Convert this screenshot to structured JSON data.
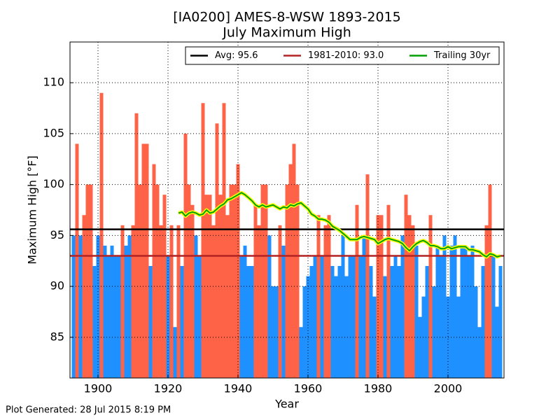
{
  "chart_data": {
    "type": "bar",
    "title": "[IA0200] AMES-8-WSW 1893-2015",
    "subtitle": "July Maximum High",
    "xlabel": "Year",
    "ylabel": "Maximum High [°F]",
    "footer": "Plot Generated: 28 Jul 2015 8:19 PM",
    "x": [
      1893,
      1894,
      1895,
      1896,
      1897,
      1898,
      1899,
      1900,
      1901,
      1902,
      1903,
      1904,
      1905,
      1906,
      1907,
      1908,
      1909,
      1910,
      1911,
      1912,
      1913,
      1914,
      1915,
      1916,
      1917,
      1918,
      1919,
      1920,
      1921,
      1922,
      1923,
      1924,
      1925,
      1926,
      1927,
      1928,
      1929,
      1930,
      1931,
      1932,
      1933,
      1934,
      1935,
      1936,
      1937,
      1938,
      1939,
      1940,
      1941,
      1942,
      1943,
      1944,
      1945,
      1946,
      1947,
      1948,
      1949,
      1950,
      1951,
      1952,
      1953,
      1954,
      1955,
      1956,
      1957,
      1958,
      1959,
      1960,
      1961,
      1962,
      1963,
      1964,
      1965,
      1966,
      1967,
      1968,
      1969,
      1970,
      1971,
      1972,
      1973,
      1974,
      1975,
      1976,
      1977,
      1978,
      1979,
      1980,
      1981,
      1982,
      1983,
      1984,
      1985,
      1986,
      1987,
      1988,
      1989,
      1990,
      1991,
      1992,
      1993,
      1994,
      1995,
      1996,
      1997,
      1998,
      1999,
      2000,
      2001,
      2002,
      2003,
      2004,
      2005,
      2006,
      2007,
      2008,
      2009,
      2010,
      2011,
      2012,
      2013,
      2014,
      2015
    ],
    "values": [
      95,
      104,
      95,
      97,
      100,
      100,
      92,
      95,
      109,
      94,
      93,
      94,
      93,
      93,
      96,
      94,
      95,
      96,
      107,
      100,
      104,
      104,
      92,
      102,
      100,
      96,
      99,
      93,
      96,
      86,
      96,
      92,
      105,
      100,
      98,
      95,
      93,
      108,
      99,
      99,
      96,
      106,
      99,
      108,
      97,
      100,
      100,
      102,
      93,
      94,
      92,
      92,
      98,
      96,
      100,
      100,
      95,
      90,
      90,
      96,
      94,
      100,
      102,
      104,
      100,
      86,
      90,
      91,
      92,
      93,
      97,
      93,
      96,
      97,
      92,
      91,
      92,
      95,
      91,
      93,
      93,
      98,
      93,
      95,
      101,
      92,
      89,
      97,
      97,
      91,
      98,
      92,
      93,
      92,
      95,
      99,
      97,
      96,
      94,
      87,
      89,
      92,
      97,
      90,
      94,
      93,
      95,
      89,
      94,
      95,
      89,
      94,
      94,
      93,
      94,
      90,
      86,
      92,
      96,
      100,
      93,
      88,
      92
    ],
    "above_color": "#ff6347",
    "below_color": "#1e90ff",
    "references": [
      {
        "name": "Avg: 95.6",
        "value": 95.6,
        "color": "#000000"
      },
      {
        "name": "1981-2010: 93.0",
        "value": 93.0,
        "color": "#b22222"
      }
    ],
    "trailing": {
      "name": "Trailing 30yr",
      "color": "#00a000",
      "outline": "#ffff00",
      "values": [
        null,
        null,
        null,
        null,
        null,
        null,
        null,
        null,
        null,
        null,
        null,
        null,
        null,
        null,
        null,
        null,
        null,
        null,
        null,
        null,
        null,
        null,
        null,
        null,
        null,
        null,
        null,
        null,
        null,
        null,
        97.2,
        97.3,
        96.9,
        97.2,
        97.3,
        97.2,
        97.0,
        97.1,
        97.5,
        97.2,
        97.3,
        97.6,
        97.9,
        98.1,
        98.5,
        98.6,
        98.8,
        99.0,
        99.2,
        99.0,
        98.7,
        98.4,
        98.0,
        97.8,
        98.0,
        97.8,
        97.9,
        98.0,
        97.8,
        97.6,
        97.8,
        97.7,
        98.0,
        97.9,
        98.1,
        98.2,
        97.9,
        97.6,
        97.1,
        96.9,
        96.6,
        96.6,
        96.5,
        96.3,
        95.9,
        95.7,
        95.5,
        95.2,
        94.9,
        94.6,
        94.6,
        94.6,
        94.8,
        94.9,
        94.8,
        94.7,
        94.6,
        94.2,
        94.4,
        94.6,
        94.7,
        94.6,
        94.5,
        94.4,
        94.2,
        93.8,
        93.5,
        93.9,
        94.2,
        94.4,
        94.5,
        94.3,
        94.0,
        94.0,
        93.9,
        93.7,
        93.7,
        93.9,
        93.7,
        93.8,
        93.9,
        93.9,
        93.9,
        93.6,
        93.6,
        93.5,
        93.4,
        93.1,
        92.9,
        93.2,
        93.1,
        92.9,
        93.0
      ]
    },
    "xlim": [
      1892,
      2016
    ],
    "ylim": [
      81,
      114
    ],
    "xticks": [
      1900,
      1920,
      1940,
      1960,
      1980,
      2000
    ],
    "yticks": [
      85,
      90,
      95,
      100,
      105,
      110
    ],
    "grid": true,
    "legend": "upper right"
  }
}
